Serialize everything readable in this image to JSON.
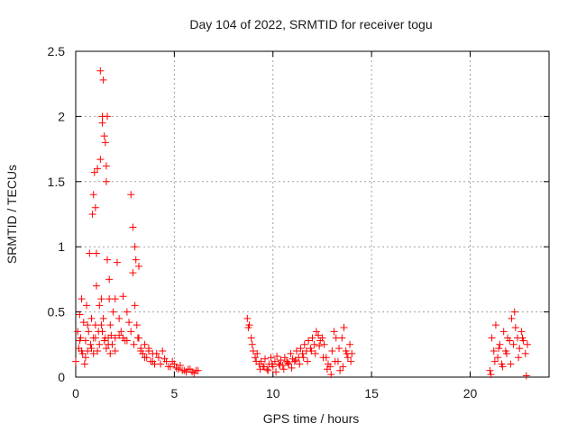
{
  "chart_data": {
    "type": "scatter",
    "title": "Day 104 of 2022, SRMTID for receiver togu",
    "xlabel": "GPS time / hours",
    "ylabel": "SRMTID / TECUs",
    "xlim": [
      0,
      24
    ],
    "ylim": [
      0,
      2.5
    ],
    "xticks": [
      "0",
      "5",
      "10",
      "15",
      "20"
    ],
    "yticks": [
      "0",
      "0.5",
      "1",
      "1.5",
      "2",
      "2.5"
    ],
    "grid": true,
    "marker": "+",
    "color": "#ff0000",
    "series": [
      {
        "name": "SRMTID",
        "x": [
          0.0,
          0.1,
          0.15,
          0.2,
          0.25,
          0.3,
          0.35,
          0.4,
          0.45,
          0.5,
          0.55,
          0.6,
          0.65,
          0.7,
          0.75,
          0.8,
          0.85,
          0.9,
          0.95,
          1.0,
          1.05,
          1.1,
          1.15,
          1.2,
          1.25,
          1.3,
          1.35,
          1.4,
          1.45,
          1.5,
          1.55,
          1.6,
          1.65,
          1.7,
          1.75,
          1.8,
          1.9,
          2.0,
          2.1,
          2.2,
          2.3,
          2.4,
          2.5,
          2.6,
          2.7,
          2.8,
          2.9,
          3.0,
          3.05,
          3.1,
          3.2,
          3.3,
          3.4,
          3.5,
          3.6,
          3.7,
          3.8,
          3.9,
          4.0,
          4.2,
          4.4,
          4.6,
          4.8,
          5.0,
          5.2,
          5.4,
          5.6,
          5.8,
          6.0,
          6.2,
          0.2,
          0.3,
          0.5,
          0.6,
          0.8,
          0.9,
          1.0,
          1.1,
          1.2,
          1.3,
          1.35,
          1.45,
          1.55,
          1.65,
          1.75,
          1.85,
          2.0,
          2.2,
          2.4,
          2.6,
          2.8,
          2.95,
          3.15,
          3.3,
          3.5,
          3.7,
          3.9,
          4.1,
          4.3,
          4.5,
          4.7,
          4.9,
          5.1,
          5.3,
          5.5,
          5.7,
          5.9,
          6.1,
          0.9,
          1.0,
          1.05,
          1.25,
          1.35,
          1.4,
          1.5,
          1.55,
          1.6,
          1.7,
          2.0,
          2.9,
          3.0,
          3.2,
          8.7,
          8.8,
          8.9,
          9.0,
          9.1,
          9.2,
          9.3,
          9.4,
          9.5,
          9.6,
          9.7,
          9.8,
          9.9,
          10.0,
          10.1,
          10.2,
          10.3,
          10.4,
          10.5,
          10.6,
          10.7,
          10.8,
          10.9,
          11.0,
          11.1,
          11.2,
          11.3,
          11.4,
          11.5,
          11.6,
          11.7,
          11.8,
          11.9,
          12.0,
          12.1,
          12.2,
          12.3,
          12.4,
          12.5,
          12.6,
          12.7,
          12.8,
          12.9,
          13.0,
          13.1,
          13.2,
          13.3,
          13.4,
          13.5,
          13.6,
          13.7,
          13.8,
          13.9,
          14.0,
          8.75,
          8.95,
          9.15,
          9.35,
          9.55,
          9.75,
          9.95,
          10.15,
          10.35,
          10.55,
          10.75,
          10.95,
          11.15,
          11.35,
          11.55,
          11.75,
          11.95,
          12.15,
          12.35,
          12.55,
          12.75,
          12.95,
          13.15,
          13.35,
          13.55,
          13.75,
          13.95,
          21.0,
          21.1,
          21.2,
          21.3,
          21.4,
          21.5,
          21.6,
          21.7,
          21.8,
          21.9,
          22.0,
          22.1,
          22.2,
          22.3,
          22.4,
          22.5,
          22.6,
          22.7,
          22.8,
          22.9,
          21.05,
          21.25,
          21.45,
          21.65,
          21.85,
          22.05,
          22.25,
          22.45,
          22.65,
          22.85
        ],
        "y": [
          0.12,
          0.35,
          0.22,
          0.48,
          0.3,
          0.6,
          0.18,
          0.42,
          0.1,
          0.28,
          0.55,
          0.2,
          0.35,
          0.95,
          0.25,
          0.45,
          1.25,
          0.3,
          1.57,
          0.4,
          0.7,
          1.6,
          0.35,
          0.55,
          2.35,
          0.6,
          2.0,
          0.45,
          1.85,
          0.3,
          1.5,
          0.9,
          0.25,
          0.6,
          0.4,
          0.32,
          0.5,
          0.3,
          0.88,
          0.45,
          0.35,
          0.62,
          0.28,
          0.5,
          0.42,
          1.4,
          0.8,
          0.55,
          0.9,
          0.4,
          0.3,
          0.22,
          0.18,
          0.25,
          0.15,
          0.2,
          0.12,
          0.18,
          0.1,
          0.15,
          0.2,
          0.12,
          0.08,
          0.1,
          0.06,
          0.05,
          0.04,
          0.06,
          0.03,
          0.05,
          0.28,
          0.2,
          0.15,
          0.4,
          0.22,
          0.18,
          0.3,
          0.2,
          0.25,
          0.4,
          0.35,
          0.28,
          0.22,
          0.3,
          0.18,
          0.25,
          0.2,
          0.32,
          0.3,
          0.28,
          0.35,
          0.25,
          0.3,
          0.2,
          0.15,
          0.22,
          0.12,
          0.18,
          0.1,
          0.14,
          0.08,
          0.12,
          0.07,
          0.09,
          0.05,
          0.06,
          0.04,
          0.05,
          1.4,
          1.3,
          0.95,
          1.67,
          1.95,
          2.28,
          1.8,
          1.62,
          2.0,
          0.75,
          0.6,
          1.15,
          1.0,
          0.85,
          0.45,
          0.4,
          0.3,
          0.2,
          0.15,
          0.18,
          0.1,
          0.12,
          0.08,
          0.14,
          0.06,
          0.1,
          0.15,
          0.08,
          0.12,
          0.16,
          0.1,
          0.13,
          0.09,
          0.15,
          0.12,
          0.1,
          0.18,
          0.14,
          0.12,
          0.2,
          0.15,
          0.22,
          0.18,
          0.25,
          0.2,
          0.28,
          0.22,
          0.3,
          0.25,
          0.35,
          0.32,
          0.28,
          0.3,
          0.25,
          0.15,
          0.1,
          0.08,
          0.2,
          0.35,
          0.3,
          0.12,
          0.05,
          0.3,
          0.38,
          0.2,
          0.15,
          0.25,
          0.18,
          0.38,
          0.25,
          0.12,
          0.06,
          0.08,
          0.05,
          0.1,
          0.04,
          0.09,
          0.06,
          0.11,
          0.07,
          0.13,
          0.1,
          0.15,
          0.12,
          0.2,
          0.18,
          0.24,
          0.15,
          0.06,
          0.02,
          0.12,
          0.22,
          0.08,
          0.18,
          0.12,
          0.05,
          0.3,
          0.2,
          0.4,
          0.15,
          0.25,
          0.1,
          0.35,
          0.2,
          0.3,
          0.28,
          0.45,
          0.25,
          0.38,
          0.3,
          0.22,
          0.35,
          0.28,
          0.18,
          0.25,
          0.02,
          0.12,
          0.22,
          0.08,
          0.18,
          0.1,
          0.5,
          0.15,
          0.3,
          0.01
        ]
      }
    ]
  }
}
